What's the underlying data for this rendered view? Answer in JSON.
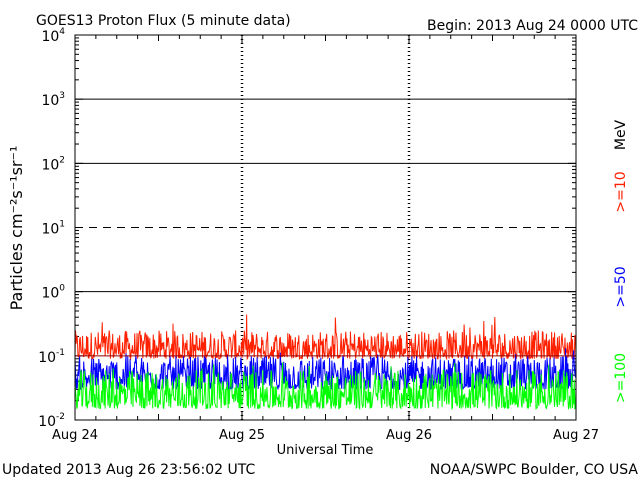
{
  "header": {
    "title": "GOES13 Proton Flux (5 minute data)",
    "begin": "Begin: 2013 Aug 24 0000 UTC"
  },
  "footer": {
    "updated": "Updated 2013 Aug 26 23:56:02 UTC",
    "credit": "NOAA/SWPC Boulder, CO USA"
  },
  "legend": {
    "unit": "MeV",
    "items": [
      {
        "label": ">=10",
        "color": "#ff2000"
      },
      {
        "label": ">=50",
        "color": "#0000ff"
      },
      {
        "label": ">=100",
        "color": "#00ff00"
      }
    ]
  },
  "chart_data": {
    "type": "line",
    "title": "GOES13 Proton Flux (5 minute data)",
    "xlabel": "Universal Time",
    "ylabel": "Particles cm⁻²s⁻¹sr⁻¹",
    "yscale": "log",
    "ylim": [
      0.01,
      10000
    ],
    "y_ticks": [
      {
        "value": 0.01,
        "base": "10",
        "exp": "-2"
      },
      {
        "value": 0.1,
        "base": "10",
        "exp": "-1"
      },
      {
        "value": 1,
        "base": "10",
        "exp": "0"
      },
      {
        "value": 10,
        "base": "10",
        "exp": "1"
      },
      {
        "value": 100,
        "base": "10",
        "exp": "2"
      },
      {
        "value": 1000,
        "base": "10",
        "exp": "3"
      },
      {
        "value": 10000,
        "base": "10",
        "exp": "4"
      }
    ],
    "x_ticks": [
      "Aug 24",
      "Aug 25",
      "Aug 26",
      "Aug 27"
    ],
    "x_range_days": [
      0,
      3
    ],
    "reference_lines": [
      {
        "value": 10,
        "style": "dashed"
      },
      {
        "value": 1,
        "style": "solid"
      },
      {
        "value": 100,
        "style": "solid"
      },
      {
        "value": 1000,
        "style": "solid"
      },
      {
        "value": 0.1,
        "style": "solid",
        "color": "#8b0000"
      }
    ],
    "series": [
      {
        "name": ">=10 MeV",
        "color": "#ff2000",
        "typical_min": 0.09,
        "typical_max": 0.25,
        "peak": 0.45
      },
      {
        "name": ">=50 MeV",
        "color": "#0000ff",
        "typical_min": 0.03,
        "typical_max": 0.1,
        "peak": 0.14
      },
      {
        "name": ">=100 MeV",
        "color": "#00ff00",
        "typical_min": 0.015,
        "typical_max": 0.06,
        "peak": 0.08
      }
    ]
  }
}
